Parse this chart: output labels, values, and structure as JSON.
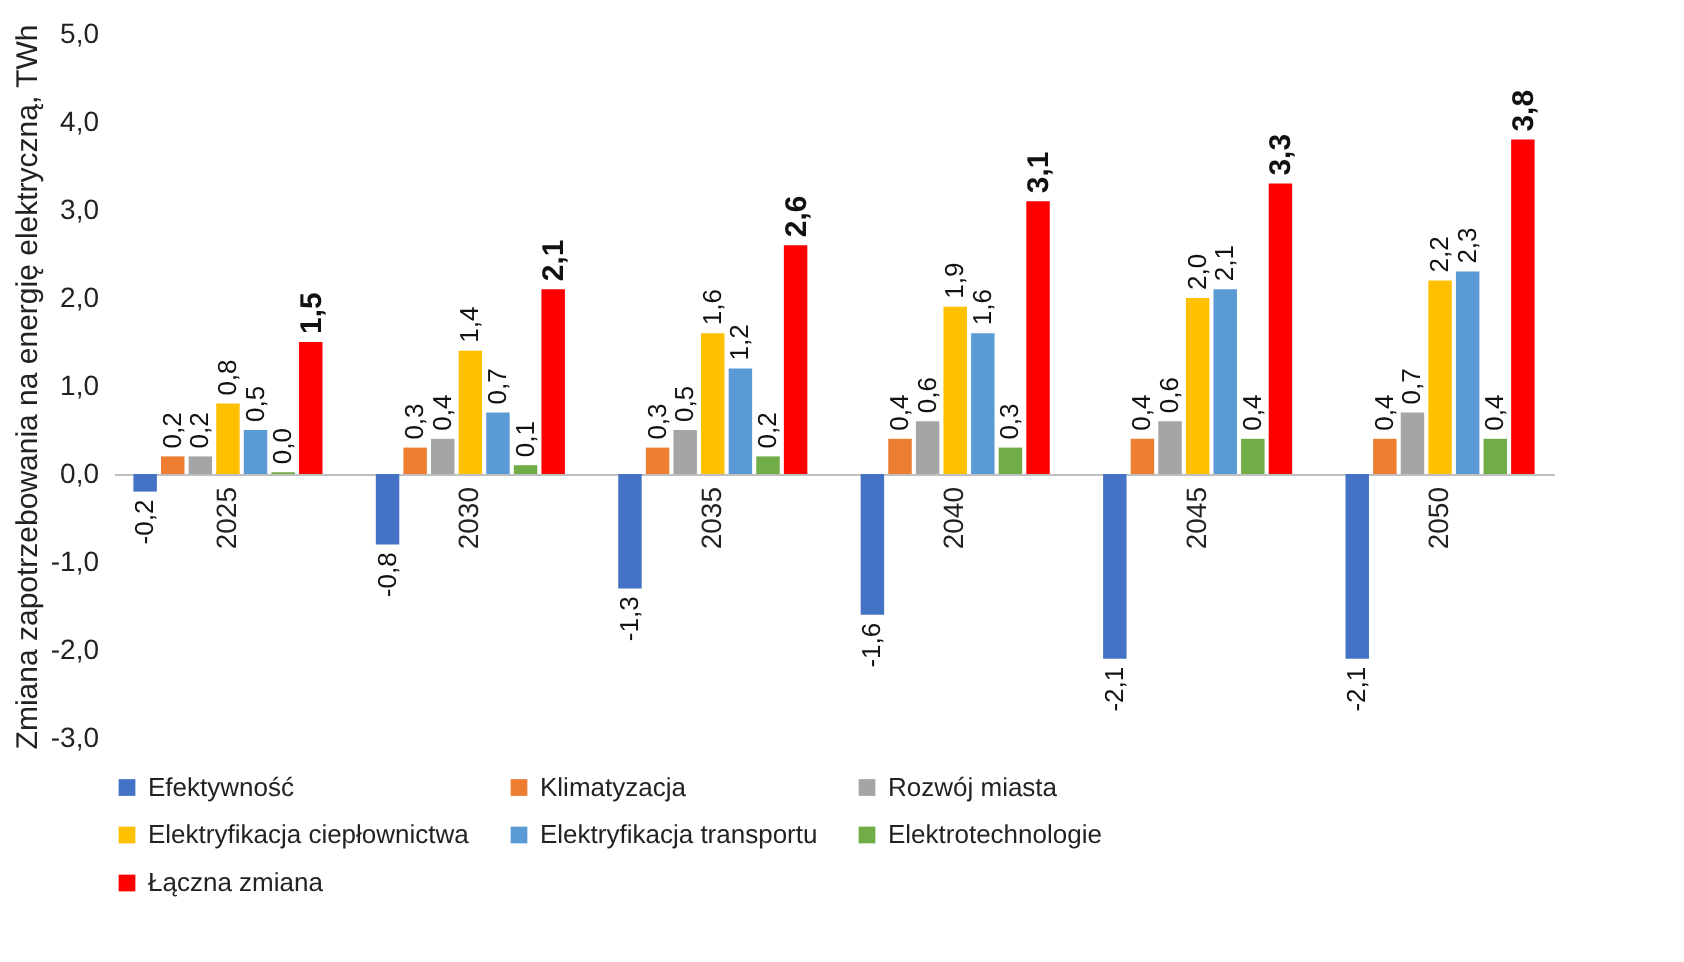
{
  "chart_data": {
    "type": "bar",
    "ylabel": "Zmiana zapotrzebowania na energię elektryczną, TWh",
    "categories": [
      "2025",
      "2030",
      "2035",
      "2040",
      "2045",
      "2050"
    ],
    "series": [
      {
        "name": "Efektywność",
        "color": "#4472c4",
        "values": [
          -0.2,
          -0.8,
          -1.3,
          -1.6,
          -2.1,
          -2.1
        ],
        "value_labels": [
          "-0,2",
          "-0,8",
          "-1,3",
          "-1,6",
          "-2,1",
          "-2,1"
        ]
      },
      {
        "name": "Klimatyzacja",
        "color": "#ed7d31",
        "values": [
          0.2,
          0.3,
          0.3,
          0.4,
          0.4,
          0.4
        ],
        "value_labels": [
          "0,2",
          "0,3",
          "0,3",
          "0,4",
          "0,4",
          "0,4"
        ]
      },
      {
        "name": "Rozwój miasta",
        "color": "#a5a5a5",
        "values": [
          0.2,
          0.4,
          0.5,
          0.6,
          0.6,
          0.7
        ],
        "value_labels": [
          "0,2",
          "0,4",
          "0,5",
          "0,6",
          "0,6",
          "0,7"
        ]
      },
      {
        "name": "Elektryfikacja ciepłownictwa",
        "color": "#ffc000",
        "values": [
          0.8,
          1.4,
          1.6,
          1.9,
          2.0,
          2.2
        ],
        "value_labels": [
          "0,8",
          "1,4",
          "1,6",
          "1,9",
          "2,0",
          "2,2"
        ]
      },
      {
        "name": "Elektryfikacja transportu",
        "color": "#5b9bd5",
        "values": [
          0.5,
          0.7,
          1.2,
          1.6,
          2.1,
          2.3
        ],
        "value_labels": [
          "0,5",
          "0,7",
          "1,2",
          "1,6",
          "2,1",
          "2,3"
        ]
      },
      {
        "name": "Elektrotechnologie",
        "color": "#70ad47",
        "values": [
          0.02,
          0.1,
          0.2,
          0.3,
          0.4,
          0.4
        ],
        "value_labels": [
          "0,0",
          "0,1",
          "0,2",
          "0,3",
          "0,4",
          "0,4"
        ]
      },
      {
        "name": "Łączna zmiana",
        "color": "#ff0000",
        "values": [
          1.5,
          2.1,
          2.6,
          3.1,
          3.3,
          3.8
        ],
        "value_labels": [
          "1,5",
          "2,1",
          "2,6",
          "3,1",
          "3,3",
          "3,8"
        ]
      }
    ],
    "ylim": [
      -3,
      5
    ],
    "yticks": [
      {
        "value": -3,
        "label": "-3,0"
      },
      {
        "value": -2,
        "label": "-2,0"
      },
      {
        "value": -1,
        "label": "-1,0"
      },
      {
        "value": 0,
        "label": "0,0"
      },
      {
        "value": 1,
        "label": "1,0"
      },
      {
        "value": 2,
        "label": "2,0"
      },
      {
        "value": 3,
        "label": "3,0"
      },
      {
        "value": 4,
        "label": "4,0"
      },
      {
        "value": 5,
        "label": "5,0"
      }
    ],
    "legend": "bottom"
  }
}
